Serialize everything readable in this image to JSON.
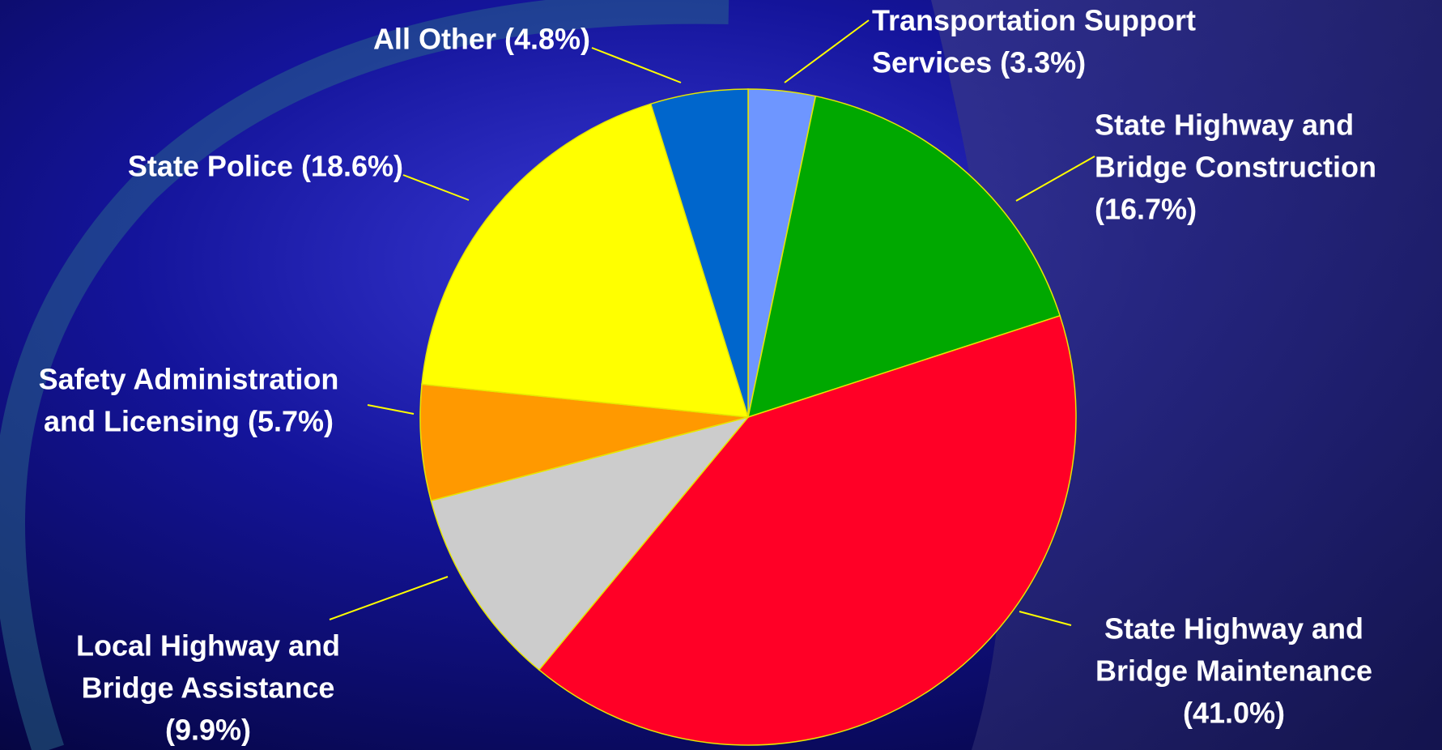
{
  "chart_data": {
    "type": "pie",
    "labels": [
      [
        "Transportation Support",
        "Services (3.3%)"
      ],
      [
        "State Highway and",
        "Bridge Construction",
        "(16.7%)"
      ],
      [
        "State Highway and",
        "Bridge Maintenance",
        "(41.0%)"
      ],
      [
        "Local Highway and",
        "Bridge Assistance",
        "(9.9%)"
      ],
      [
        "Safety Administration",
        "and Licensing (5.7%)"
      ],
      [
        "State Police (18.6%)"
      ],
      [
        "All Other (4.8%)"
      ]
    ],
    "values": [
      3.3,
      16.7,
      41.0,
      9.9,
      5.7,
      18.6,
      4.8
    ],
    "colors": [
      "#6e96ff",
      "#00a800",
      "#ff0026",
      "#cccccc",
      "#ff9900",
      "#ffff00",
      "#0066cc"
    ]
  }
}
